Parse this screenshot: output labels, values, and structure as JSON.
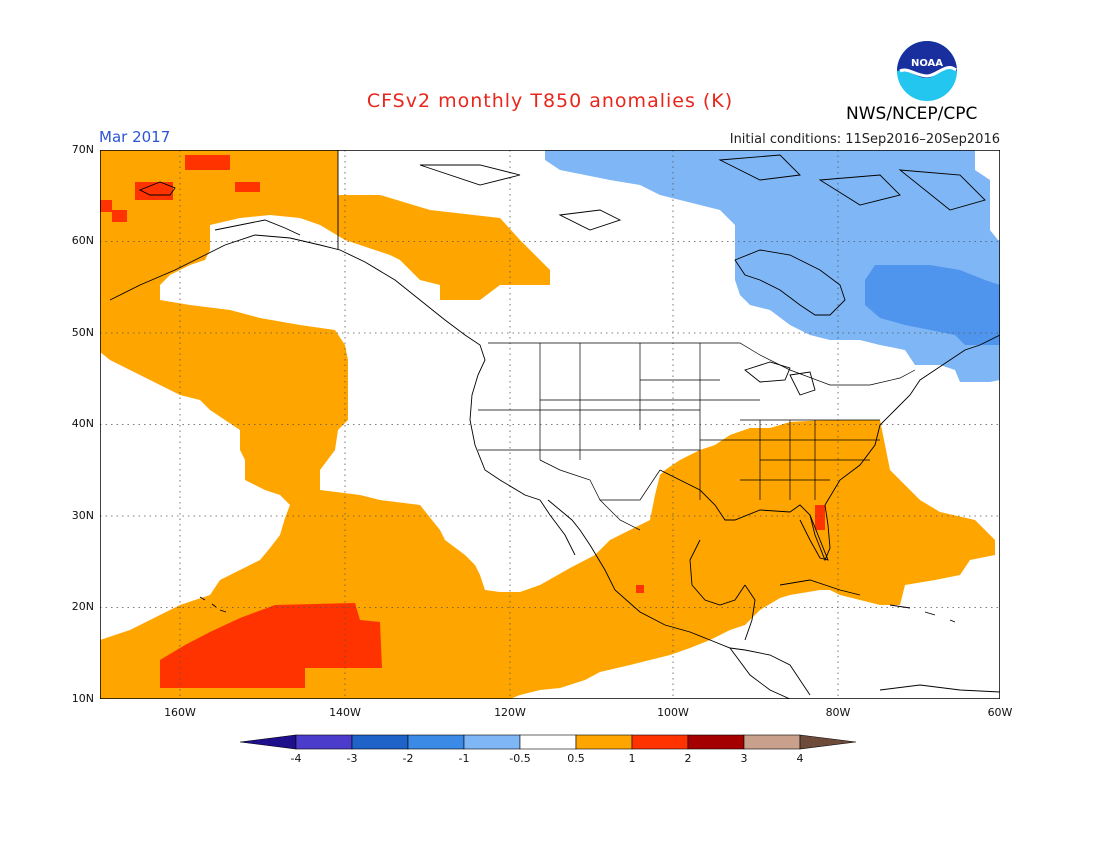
{
  "title": "CFSv2 monthly T850 anomalies (K)",
  "valid_month": "Mar 2017",
  "initial_conditions": "Initial conditions: 11Sep2016–20Sep2016",
  "credit": "NWS/NCEP/CPC",
  "logo_text": "NOAA",
  "colors": {
    "title": "#e8261c",
    "month": "#2c55d6",
    "orange": "#ffa500",
    "red_orange": "#ff3300",
    "light_blue": "#7fb6f5",
    "mid_blue": "#4f95ee",
    "dark_blue": "#1f5fd6",
    "navy": "#3a33c8"
  },
  "lat_labels": [
    "70N",
    "60N",
    "50N",
    "40N",
    "30N",
    "20N",
    "10N"
  ],
  "lon_labels": [
    "160W",
    "140W",
    "120W",
    "100W",
    "80W",
    "60W"
  ],
  "colorbar": {
    "labels": [
      "-4",
      "-3",
      "-2",
      "-1",
      "-0.5",
      "0.5",
      "1",
      "2",
      "3",
      "4"
    ],
    "colors": [
      "#1e0f8c",
      "#4b3ccc",
      "#1f62c8",
      "#3b8ae6",
      "#7fb6f5",
      "#ffffff",
      "#ffa500",
      "#ff3300",
      "#a50000",
      "#c8a08c",
      "#6e4a3a"
    ]
  }
}
